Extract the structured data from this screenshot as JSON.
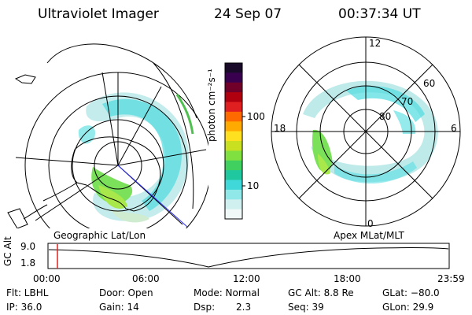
{
  "header": {
    "instrument": "Ultraviolet Imager",
    "date": "24 Sep 07",
    "time": "00:37:34 UT"
  },
  "left_map": {
    "label": "Geographic Lat/Lon",
    "emission_fill": "#4fdce0",
    "core_fill": "#7be05a"
  },
  "right_map": {
    "label": "Apex MLat/MLT",
    "mlt_labels": {
      "top": "12",
      "left": "18",
      "right": "6",
      "bottom": "0"
    },
    "lat_labels": [
      "60",
      "70",
      "80"
    ]
  },
  "colorbar": {
    "unit_label": "photon cm⁻²s⁻¹",
    "ticks": [
      "100",
      "10"
    ],
    "colors": [
      "#1a0a2a",
      "#3a0050",
      "#70002a",
      "#b00010",
      "#e02020",
      "#ff6a00",
      "#ffaa00",
      "#ffe020",
      "#c8e020",
      "#80e040",
      "#40d060",
      "#20c8a0",
      "#40d8d8",
      "#90e8e8",
      "#d0f0f0",
      "#f0f8f8"
    ]
  },
  "timeline": {
    "axis_label": "GC Alt",
    "y_ticks": [
      "9.0",
      "1.8"
    ],
    "x_ticks": [
      "00:00",
      "06:00",
      "12:00",
      "18:00",
      "23:59"
    ],
    "marker_color": "#dd2222"
  },
  "status": {
    "filter": "Flt: LBHL",
    "ip": "IP: 36.0",
    "door": "Door: Open",
    "gain": "Gain: 14",
    "mode": "Mode: Normal",
    "dsp_label": "Dsp:",
    "dsp_value": "2.3",
    "gc_alt": "GC Alt: 8.8 Re",
    "seq": "Seq: 39",
    "glat": "GLat: −80.0",
    "glon": "GLon: 29.9"
  }
}
